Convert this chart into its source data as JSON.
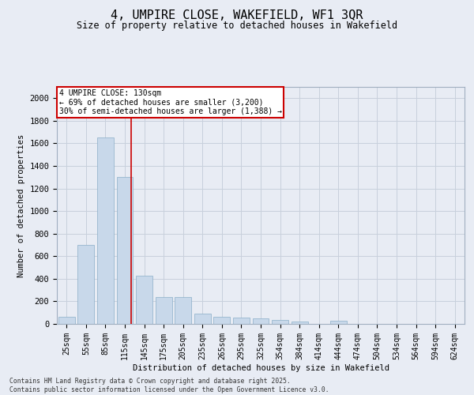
{
  "title": "4, UMPIRE CLOSE, WAKEFIELD, WF1 3QR",
  "subtitle": "Size of property relative to detached houses in Wakefield",
  "xlabel": "Distribution of detached houses by size in Wakefield",
  "ylabel": "Number of detached properties",
  "bar_color": "#c8d8ea",
  "bar_edge_color": "#8aaec8",
  "categories": [
    "25sqm",
    "55sqm",
    "85sqm",
    "115sqm",
    "145sqm",
    "175sqm",
    "205sqm",
    "235sqm",
    "265sqm",
    "295sqm",
    "325sqm",
    "354sqm",
    "384sqm",
    "414sqm",
    "444sqm",
    "474sqm",
    "504sqm",
    "534sqm",
    "564sqm",
    "594sqm",
    "624sqm"
  ],
  "values": [
    60,
    700,
    1650,
    1300,
    430,
    240,
    240,
    90,
    60,
    55,
    50,
    35,
    20,
    0,
    30,
    0,
    0,
    0,
    0,
    0,
    0
  ],
  "ylim": [
    0,
    2100
  ],
  "yticks": [
    0,
    200,
    400,
    600,
    800,
    1000,
    1200,
    1400,
    1600,
    1800,
    2000
  ],
  "annotation_line1": "4 UMPIRE CLOSE: 130sqm",
  "annotation_line2": "← 69% of detached houses are smaller (3,200)",
  "annotation_line3": "30% of semi-detached houses are larger (1,388) →",
  "vline_color": "#cc0000",
  "vline_x": 3.33,
  "annotation_box_color": "#ffffff",
  "annotation_box_edge": "#cc0000",
  "grid_color": "#c8d0dc",
  "background_color": "#e8ecf4",
  "footer_line1": "Contains HM Land Registry data © Crown copyright and database right 2025.",
  "footer_line2": "Contains public sector information licensed under the Open Government Licence v3.0."
}
